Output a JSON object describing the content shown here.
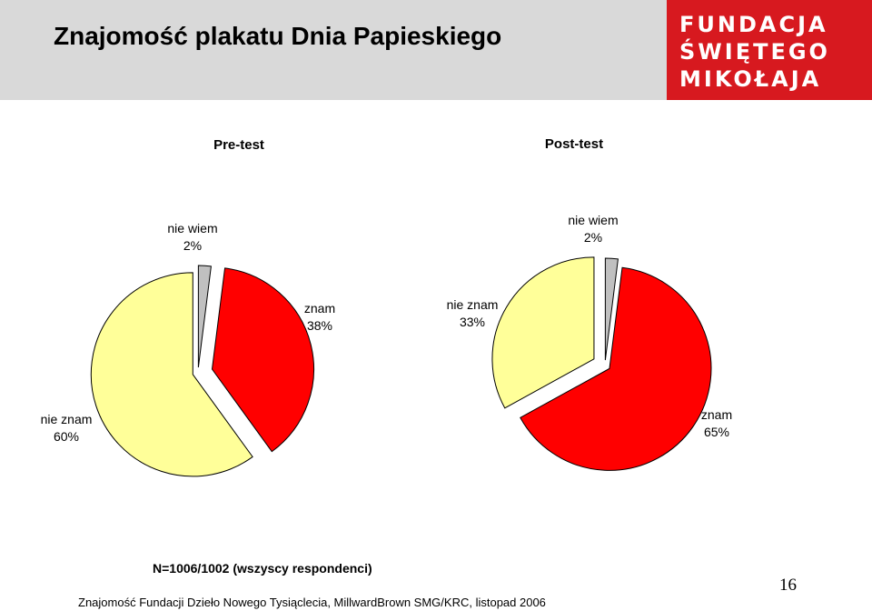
{
  "title": "Znajomość plakatu Dnia Papieskiego",
  "logo": {
    "lines": [
      "FUNDACJA",
      "ŚWIĘTEGO",
      "MIKOŁAJA"
    ],
    "color": "#d7191f"
  },
  "chart_data": [
    {
      "type": "pie",
      "title": "Pre-test",
      "slices": [
        {
          "label": "nie wiem",
          "value": 2,
          "value_label": "2%",
          "color": "#c0c0c0"
        },
        {
          "label": "znam",
          "value": 38,
          "value_label": "38%",
          "color": "#ff0000"
        },
        {
          "label": "nie znam",
          "value": 60,
          "value_label": "60%",
          "color": "#ffff99"
        }
      ]
    },
    {
      "type": "pie",
      "title": "Post-test",
      "slices": [
        {
          "label": "nie wiem",
          "value": 2,
          "value_label": "2%",
          "color": "#c0c0c0"
        },
        {
          "label": "znam",
          "value": 65,
          "value_label": "65%",
          "color": "#ff0000"
        },
        {
          "label": "nie znam",
          "value": 33,
          "value_label": "33%",
          "color": "#ffff99"
        }
      ]
    }
  ],
  "footnote": "N=1006/1002 (wszyscy respondenci)",
  "footer": "Znajomość Fundacji Dzieło Nowego Tysiąclecia, MillwardBrown SMG/KRC, listopad 2006",
  "page_number": "16"
}
